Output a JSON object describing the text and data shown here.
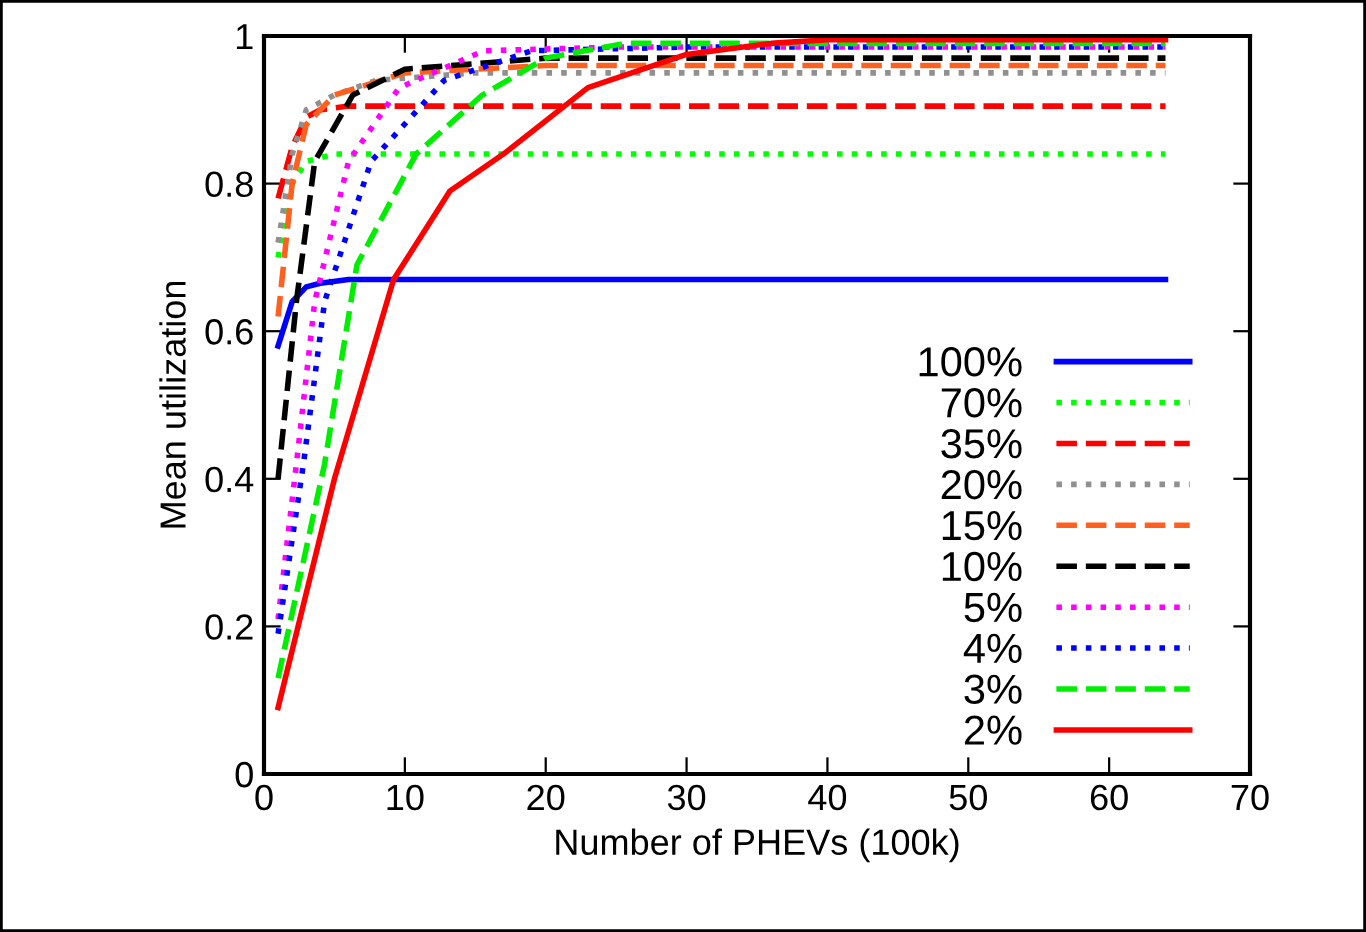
{
  "chart_data": {
    "type": "line",
    "xlabel": "Number of PHEVs (100k)",
    "ylabel": "Mean utilization",
    "xlim": [
      0,
      70
    ],
    "xticks": [
      0,
      10,
      20,
      30,
      40,
      50,
      60,
      70
    ],
    "ylim": [
      0,
      1
    ],
    "yticks": [
      0,
      0.2,
      0.4,
      0.6,
      0.8,
      1
    ],
    "grid": false,
    "legend": "bottom right",
    "marker": "none",
    "series": [
      {
        "name": "100%",
        "color": "#0000ff",
        "line_style": "solid",
        "x": [
          1,
          2,
          3,
          4,
          6,
          10,
          64
        ],
        "values": [
          0.58,
          0.64,
          0.66,
          0.665,
          0.67,
          0.67,
          0.67
        ]
      },
      {
        "name": "70%",
        "color": "#00ff00",
        "line_style": "dotted",
        "x": [
          1,
          2,
          3,
          5,
          10,
          64
        ],
        "values": [
          0.7,
          0.8,
          0.83,
          0.84,
          0.84,
          0.84
        ]
      },
      {
        "name": "35%",
        "color": "#ff0000",
        "line_style": "dashed",
        "x": [
          1,
          2,
          3,
          4,
          6,
          64
        ],
        "values": [
          0.78,
          0.85,
          0.89,
          0.9,
          0.905,
          0.905
        ]
      },
      {
        "name": "20%",
        "color": "#909090",
        "line_style": "dotted",
        "x": [
          1,
          2,
          3,
          5,
          8,
          15,
          64
        ],
        "values": [
          0.72,
          0.84,
          0.9,
          0.92,
          0.94,
          0.95,
          0.95
        ]
      },
      {
        "name": "15%",
        "color": "#ff6020",
        "line_style": "dashed",
        "x": [
          1,
          2,
          3,
          5,
          10,
          20,
          64
        ],
        "values": [
          0.62,
          0.8,
          0.88,
          0.92,
          0.95,
          0.96,
          0.96
        ]
      },
      {
        "name": "10%",
        "color": "#000000",
        "line_style": "dashed",
        "x": [
          1,
          2.3,
          3.6,
          6.3,
          10,
          20,
          64
        ],
        "values": [
          0.4,
          0.64,
          0.83,
          0.92,
          0.955,
          0.97,
          0.97
        ]
      },
      {
        "name": "5%",
        "color": "#ff00ff",
        "line_style": "dotted",
        "x": [
          1,
          2.3,
          3.6,
          6,
          9.6,
          15.6,
          25,
          64
        ],
        "values": [
          0.21,
          0.42,
          0.64,
          0.83,
          0.93,
          0.98,
          0.985,
          0.985
        ]
      },
      {
        "name": "4%",
        "color": "#0000ff",
        "line_style": "dotted",
        "x": [
          1,
          2.8,
          4.3,
          7.6,
          12.8,
          19,
          30,
          64
        ],
        "values": [
          0.19,
          0.42,
          0.64,
          0.83,
          0.94,
          0.98,
          0.985,
          0.985
        ]
      },
      {
        "name": "3%",
        "color": "#00ee00",
        "line_style": "dashed",
        "x": [
          1,
          4.3,
          6.6,
          10.8,
          15.5,
          20,
          25.6,
          64
        ],
        "values": [
          0.13,
          0.42,
          0.69,
          0.84,
          0.92,
          0.97,
          0.99,
          0.99
        ]
      },
      {
        "name": "2%",
        "color": "#ff0000",
        "line_style": "solid",
        "x": [
          1,
          5,
          9.2,
          13.2,
          17,
          23,
          30,
          36,
          40,
          64
        ],
        "values": [
          0.09,
          0.4,
          0.67,
          0.79,
          0.84,
          0.93,
          0.975,
          0.99,
          0.995,
          0.995
        ]
      }
    ]
  }
}
